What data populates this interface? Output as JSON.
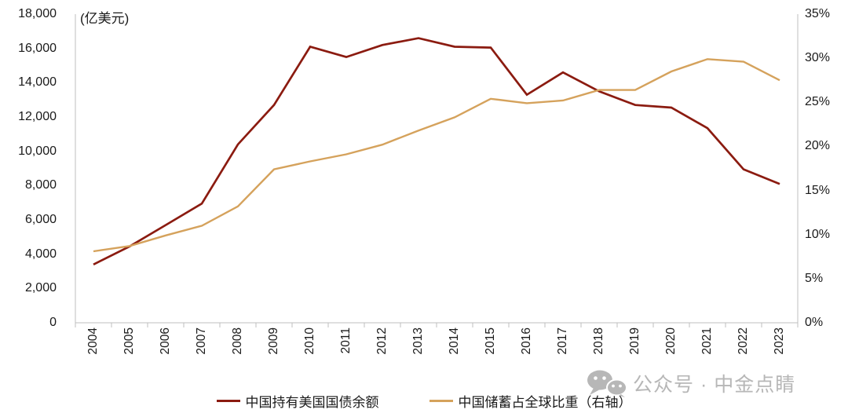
{
  "figure": {
    "unit_label": "(亿美元)",
    "watermark_text": "公众号 · 中金点睛",
    "colors": {
      "axis_line": "#BFBFBF",
      "text": "#1A1A1A",
      "watermark_gray": "#B7B7B7",
      "series_red": "#8B1B10",
      "series_gold": "#D5A25C"
    }
  },
  "chart_data": {
    "type": "line",
    "title": "",
    "grid": false,
    "legend_position": "bottom",
    "x": [
      "2004",
      "2005",
      "2006",
      "2007",
      "2008",
      "2009",
      "2010",
      "2011",
      "2012",
      "2013",
      "2014",
      "2015",
      "2016",
      "2017",
      "2018",
      "2019",
      "2020",
      "2021",
      "2022",
      "2023"
    ],
    "series": [
      {
        "name": "中国持有美国国债余额",
        "axis": "left",
        "color": "#8B1B10",
        "values": [
          3400,
          4450,
          5700,
          6950,
          10400,
          12700,
          16100,
          15500,
          16200,
          16600,
          16100,
          16050,
          13300,
          14600,
          13500,
          12700,
          12550,
          11350,
          8950,
          8100
        ]
      },
      {
        "name": "中国储蓄占全球比重（右轴）",
        "axis": "right",
        "color": "#D5A25C",
        "values": [
          8.1,
          8.7,
          9.9,
          11.0,
          13.2,
          17.4,
          18.3,
          19.1,
          20.2,
          21.8,
          23.3,
          25.4,
          24.9,
          25.2,
          26.4,
          26.4,
          28.5,
          29.9,
          29.6,
          27.5
        ]
      }
    ],
    "left_axis": {
      "title": "(亿美元)",
      "min": 0,
      "max": 18000,
      "step": 2000,
      "tick_labels": [
        "18,000",
        "16,000",
        "14,000",
        "12,000",
        "10,000",
        "8,000",
        "6,000",
        "4,000",
        "2,000",
        "0"
      ]
    },
    "right_axis": {
      "title": "",
      "min": 0,
      "max": 35,
      "step": 5,
      "tick_labels": [
        "35%",
        "30%",
        "25%",
        "20%",
        "15%",
        "10%",
        "5%",
        "0%"
      ]
    }
  }
}
